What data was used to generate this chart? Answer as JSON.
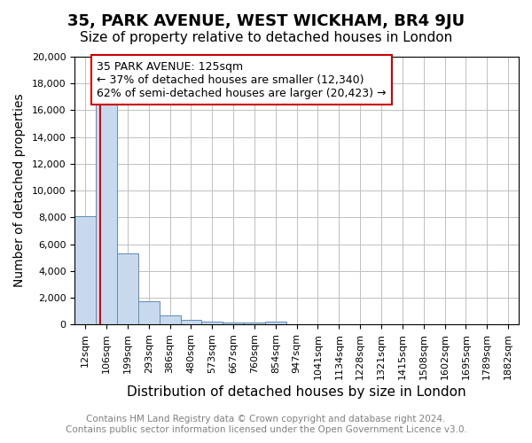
{
  "title": "35, PARK AVENUE, WEST WICKHAM, BR4 9JU",
  "subtitle": "Size of property relative to detached houses in London",
  "xlabel": "Distribution of detached houses by size in London",
  "ylabel": "Number of detached properties",
  "footer_line1": "Contains HM Land Registry data © Crown copyright and database right 2024.",
  "footer_line2": "Contains public sector information licensed under the Open Government Licence v3.0.",
  "annotation_title": "35 PARK AVENUE: 125sqm",
  "annotation_line1": "← 37% of detached houses are smaller (12,340)",
  "annotation_line2": "62% of semi-detached houses are larger (20,423) →",
  "property_size": 125,
  "categories": [
    "12sqm",
    "106sqm",
    "199sqm",
    "293sqm",
    "386sqm",
    "480sqm",
    "573sqm",
    "667sqm",
    "760sqm",
    "854sqm",
    "947sqm",
    "1041sqm",
    "1134sqm",
    "1228sqm",
    "1321sqm",
    "1415sqm",
    "1508sqm",
    "1602sqm",
    "1695sqm",
    "1789sqm",
    "1882sqm"
  ],
  "bar_values": [
    8100,
    16700,
    5300,
    1750,
    700,
    350,
    200,
    150,
    150,
    200,
    0,
    0,
    0,
    0,
    0,
    0,
    0,
    0,
    0,
    0,
    0
  ],
  "bar_color": "#c9d9ed",
  "bar_edgecolor": "#5b8db8",
  "redline_color": "#cc0000",
  "annotation_box_edgecolor": "#cc0000",
  "annotation_box_facecolor": "#ffffff",
  "grid_color": "#c0c0c0",
  "ylim": [
    0,
    20000
  ],
  "yticks": [
    0,
    2000,
    4000,
    6000,
    8000,
    10000,
    12000,
    14000,
    16000,
    18000,
    20000
  ],
  "title_fontsize": 13,
  "subtitle_fontsize": 11,
  "xlabel_fontsize": 11,
  "ylabel_fontsize": 10,
  "tick_fontsize": 8,
  "annotation_fontsize": 9,
  "footer_fontsize": 7.5
}
